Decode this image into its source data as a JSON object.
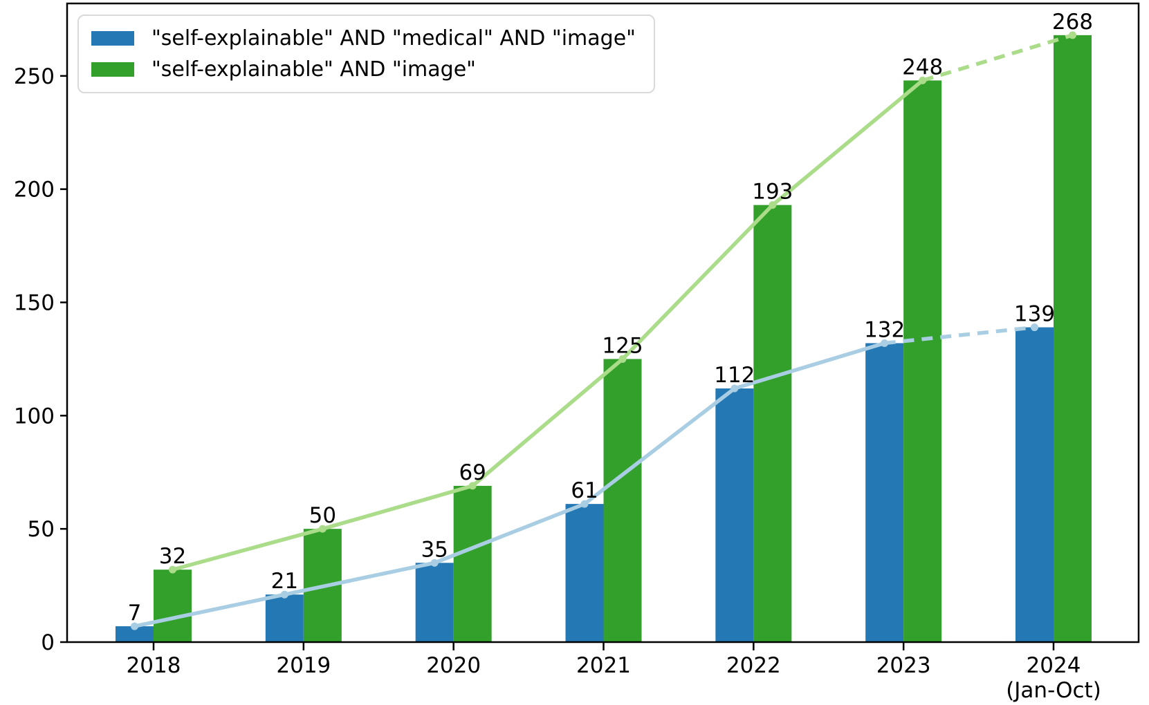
{
  "figure": {
    "background": "#ffffff",
    "frame_color": "#000000"
  },
  "chart_data": {
    "type": "bar",
    "title": "",
    "xlabel": "",
    "ylabel": "",
    "grid": false,
    "legend_position": "upper left",
    "categories": [
      "2018",
      "2019",
      "2020",
      "2021",
      "2022",
      "2023",
      "2024"
    ],
    "x_sublabels": [
      "",
      "",
      "",
      "",
      "",
      "",
      "(Jan-Oct)"
    ],
    "series": [
      {
        "name": "\"self-explainable\" AND \"medical\" AND \"image\"",
        "values": [
          7,
          21,
          35,
          61,
          112,
          132,
          139
        ],
        "bar_color": "#2478b4",
        "line_color": "#a9cee3"
      },
      {
        "name": "\"self-explainable\" AND \"image\"",
        "values": [
          32,
          50,
          69,
          125,
          193,
          248,
          268
        ],
        "bar_color": "#33a02c",
        "line_color": "#aadc8a"
      }
    ],
    "ylim": [
      0,
      282
    ],
    "yticks": [
      0,
      50,
      100,
      150,
      200,
      250
    ],
    "show_value_labels": true,
    "value_label_color": "#000000",
    "trend_line": {
      "dashed_segment_start_index": 5,
      "markers": true
    }
  }
}
